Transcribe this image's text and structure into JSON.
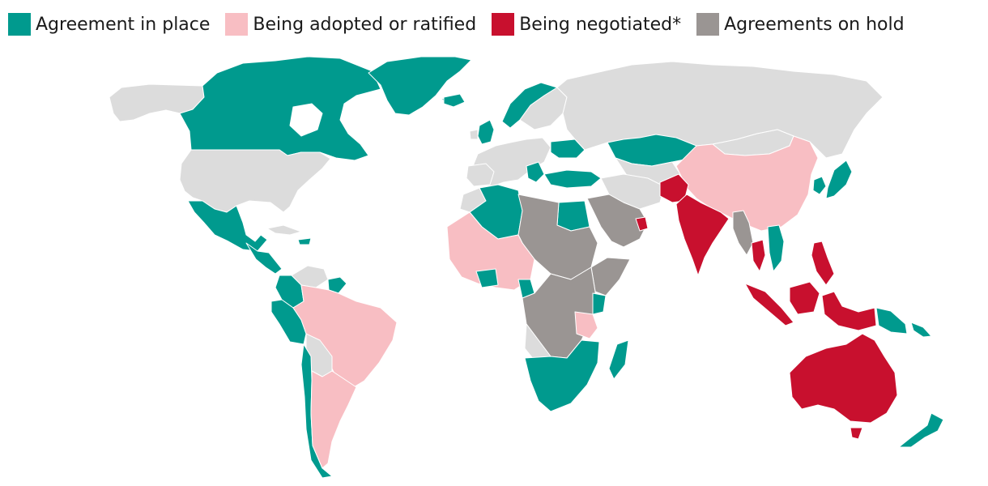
{
  "legend": {
    "items": [
      {
        "label": "Agreement in place",
        "color": "#009a8e"
      },
      {
        "label": "Being adopted or ratified",
        "color": "#f8bec3"
      },
      {
        "label": "Being negotiated*",
        "color": "#c8102e"
      },
      {
        "label": "Agreements on hold",
        "color": "#9a9593"
      }
    ]
  },
  "colors": {
    "no_agreement": "#dcdcdc",
    "border": "#ffffff",
    "background": "#ffffff"
  },
  "regions": [
    {
      "name": "Canada",
      "status": "in_place"
    },
    {
      "name": "Greenland",
      "status": "in_place"
    },
    {
      "name": "United States",
      "status": "none"
    },
    {
      "name": "Mexico",
      "status": "in_place"
    },
    {
      "name": "Central America",
      "status": "in_place"
    },
    {
      "name": "Caribbean",
      "status": "in_place"
    },
    {
      "name": "Colombia",
      "status": "in_place"
    },
    {
      "name": "Peru",
      "status": "in_place"
    },
    {
      "name": "Chile",
      "status": "in_place"
    },
    {
      "name": "Brazil",
      "status": "adopted"
    },
    {
      "name": "Argentina",
      "status": "adopted"
    },
    {
      "name": "Iceland",
      "status": "in_place"
    },
    {
      "name": "Norway",
      "status": "in_place"
    },
    {
      "name": "United Kingdom",
      "status": "in_place"
    },
    {
      "name": "Ukraine",
      "status": "in_place"
    },
    {
      "name": "Turkey",
      "status": "in_place"
    },
    {
      "name": "Kazakhstan",
      "status": "in_place"
    },
    {
      "name": "Russia",
      "status": "none"
    },
    {
      "name": "China",
      "status": "adopted"
    },
    {
      "name": "Japan",
      "status": "in_place"
    },
    {
      "name": "South Korea",
      "status": "in_place"
    },
    {
      "name": "India",
      "status": "negotiated"
    },
    {
      "name": "Indonesia",
      "status": "negotiated"
    },
    {
      "name": "Philippines",
      "status": "negotiated"
    },
    {
      "name": "Australia",
      "status": "negotiated"
    },
    {
      "name": "New Zealand",
      "status": "in_place"
    },
    {
      "name": "Papua New Guinea",
      "status": "in_place"
    },
    {
      "name": "Myanmar",
      "status": "on_hold"
    },
    {
      "name": "Vietnam",
      "status": "in_place"
    },
    {
      "name": "Saudi Arabia",
      "status": "on_hold"
    },
    {
      "name": "Algeria",
      "status": "in_place"
    },
    {
      "name": "Egypt",
      "status": "in_place"
    },
    {
      "name": "West Africa",
      "status": "adopted"
    },
    {
      "name": "Libya and Sudan",
      "status": "on_hold"
    },
    {
      "name": "Central Africa",
      "status": "on_hold"
    },
    {
      "name": "East Africa",
      "status": "on_hold"
    },
    {
      "name": "Southern Africa",
      "status": "in_place"
    },
    {
      "name": "Madagascar",
      "status": "in_place"
    }
  ]
}
